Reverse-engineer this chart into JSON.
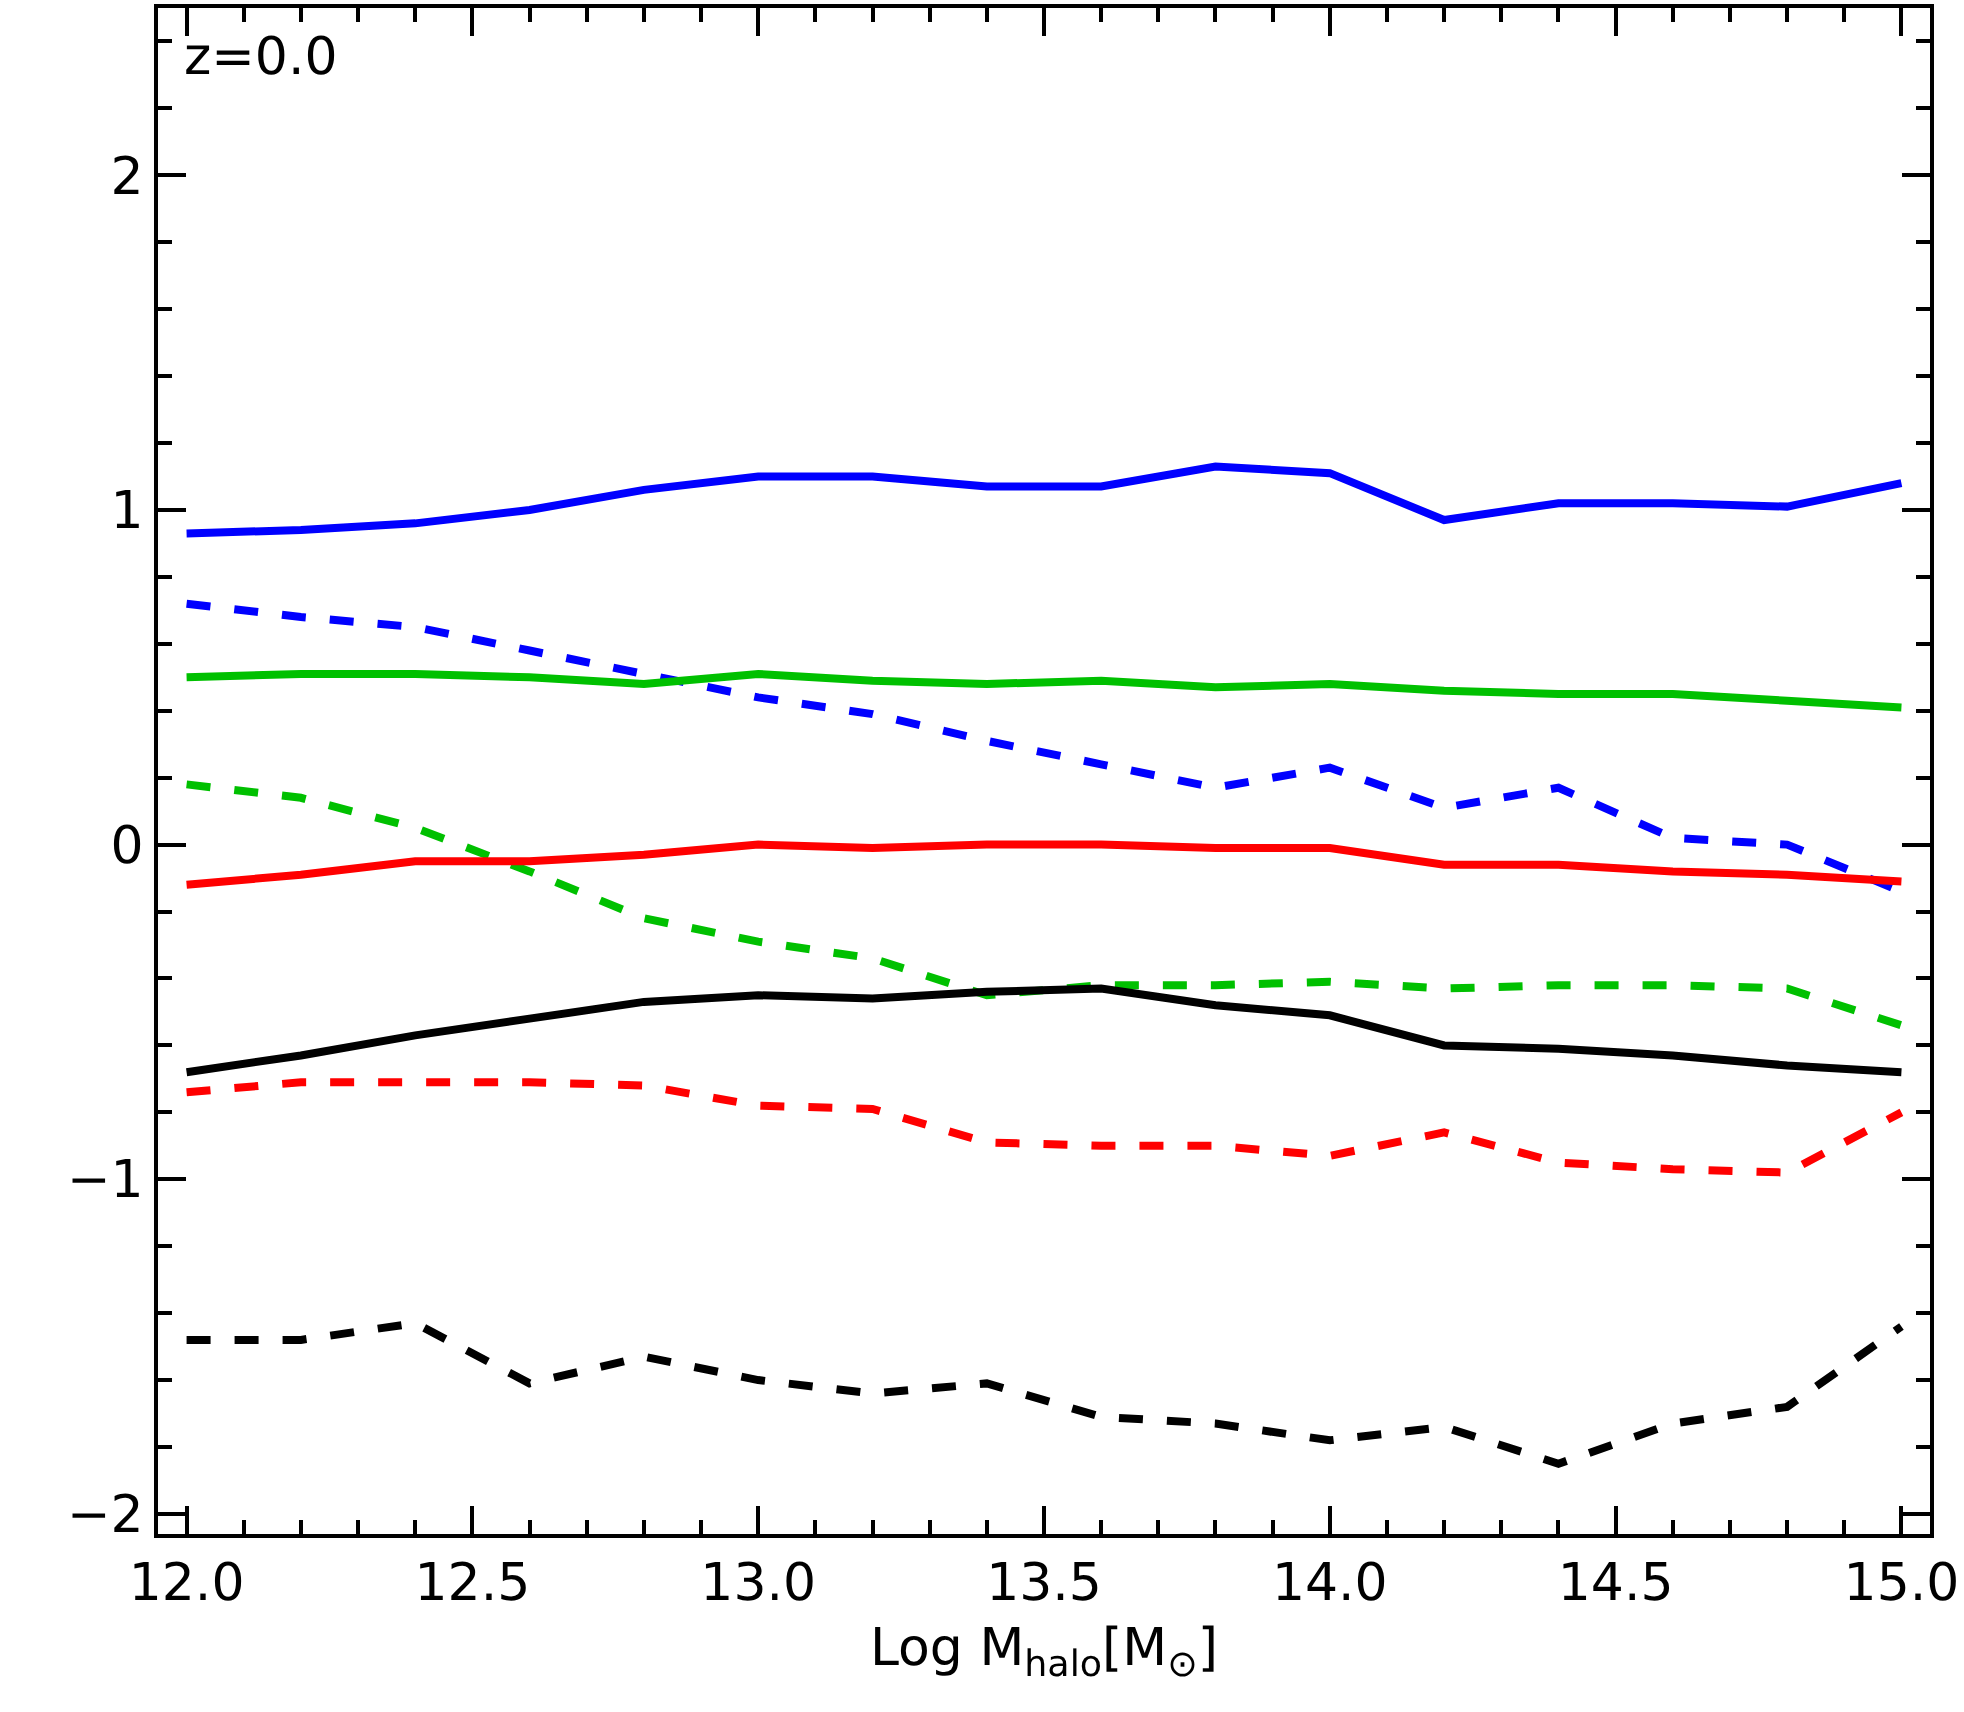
{
  "chart_data": {
    "type": "line",
    "xlabel": "Log M$_{halo}$[M$_{⊙}$]",
    "annotations": [
      "z=0.0"
    ],
    "x": [
      12.0,
      12.2,
      12.4,
      12.6,
      12.8,
      13.0,
      13.2,
      13.4,
      13.6,
      13.8,
      14.0,
      14.2,
      14.4,
      14.6,
      14.8,
      15.0
    ],
    "xlim": [
      11.95,
      15.05
    ],
    "xticks": [
      {
        "value": 12,
        "label": "12.0"
      },
      {
        "value": 12.5,
        "label": "12.5"
      },
      {
        "value": 13,
        "label": "13.0"
      },
      {
        "value": 13.5,
        "label": "13.5"
      },
      {
        "value": 14,
        "label": "14.0"
      },
      {
        "value": 14.5,
        "label": "14.5"
      },
      {
        "value": 15,
        "label": "15.0"
      }
    ],
    "ylim": [
      -2.06,
      2.5
    ],
    "yticks": [
      {
        "value": -2,
        "label": "−2"
      },
      {
        "value": -1,
        "label": "−1"
      },
      0,
      1,
      2
    ],
    "grid": false,
    "marker": "none",
    "series": [
      {
        "color": "#0000ff",
        "line_style": "solid",
        "values": [
          0.93,
          0.94,
          0.96,
          1.0,
          1.06,
          1.1,
          1.1,
          1.07,
          1.07,
          1.13,
          1.11,
          0.97,
          1.02,
          1.02,
          1.01,
          1.08
        ]
      },
      {
        "color": "#0000ff",
        "line_style": "dashed",
        "values": [
          0.72,
          0.68,
          0.65,
          0.58,
          0.51,
          0.44,
          0.39,
          0.31,
          0.24,
          0.17,
          0.23,
          0.11,
          0.17,
          0.02,
          0.0,
          -0.14
        ]
      },
      {
        "color": "#00c000",
        "line_style": "solid",
        "values": [
          0.5,
          0.51,
          0.51,
          0.5,
          0.48,
          0.51,
          0.49,
          0.48,
          0.49,
          0.47,
          0.48,
          0.46,
          0.45,
          0.45,
          0.43,
          0.41
        ]
      },
      {
        "color": "#00c000",
        "line_style": "dashed",
        "values": [
          0.18,
          0.14,
          0.05,
          -0.08,
          -0.22,
          -0.29,
          -0.34,
          -0.45,
          -0.42,
          -0.42,
          -0.41,
          -0.43,
          -0.42,
          -0.42,
          -0.43,
          -0.54
        ]
      },
      {
        "color": "#ff0000",
        "line_style": "solid",
        "values": [
          -0.12,
          -0.09,
          -0.05,
          -0.05,
          -0.03,
          0.0,
          -0.01,
          0.0,
          0.0,
          -0.01,
          -0.01,
          -0.06,
          -0.06,
          -0.08,
          -0.09,
          -0.11
        ]
      },
      {
        "color": "#000000",
        "line_style": "solid",
        "values": [
          -0.68,
          -0.63,
          -0.57,
          -0.52,
          -0.47,
          -0.45,
          -0.46,
          -0.44,
          -0.43,
          -0.48,
          -0.51,
          -0.6,
          -0.61,
          -0.63,
          -0.66,
          -0.68
        ]
      },
      {
        "color": "#ff0000",
        "line_style": "dashed",
        "values": [
          -0.74,
          -0.71,
          -0.71,
          -0.71,
          -0.72,
          -0.78,
          -0.79,
          -0.89,
          -0.9,
          -0.9,
          -0.93,
          -0.86,
          -0.95,
          -0.97,
          -0.98,
          -0.8
        ]
      },
      {
        "color": "#000000",
        "line_style": "dashed",
        "values": [
          -1.48,
          -1.48,
          -1.43,
          -1.61,
          -1.53,
          -1.6,
          -1.64,
          -1.61,
          -1.71,
          -1.73,
          -1.78,
          -1.74,
          -1.85,
          -1.73,
          -1.68,
          -1.44
        ]
      }
    ]
  }
}
